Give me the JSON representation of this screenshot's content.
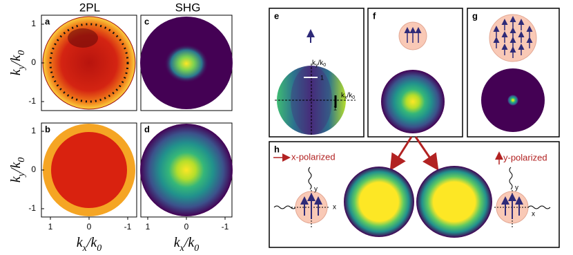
{
  "columns": [
    "2PL",
    "SHG"
  ],
  "panel_labels": [
    "a",
    "b",
    "c",
    "d",
    "e",
    "f",
    "g",
    "h"
  ],
  "axis_labels": {
    "y": [
      "k",
      "y",
      "/k",
      "0"
    ],
    "x": [
      "k",
      "x",
      "/k",
      "0"
    ]
  },
  "ticks": [
    "1",
    "0",
    "-1"
  ],
  "panel_e": {
    "ky": [
      "k",
      "y",
      "/k",
      "0"
    ],
    "kx": [
      "k",
      "x",
      "/k",
      "0"
    ],
    "scale": "1"
  },
  "panel_h": {
    "x_polarized": "x-polarized",
    "y_polarized": "y-polarized",
    "x": "x",
    "y": "y"
  }
}
